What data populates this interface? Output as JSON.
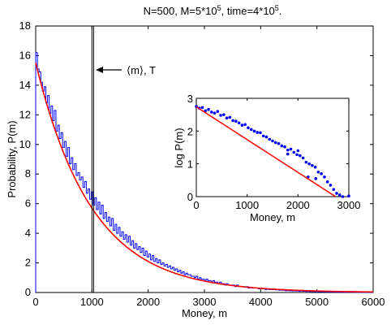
{
  "chart_data": [
    {
      "type": "bar",
      "title_parts": [
        "N=500, M=5*10",
        "5",
        ", time=4*10",
        "5",
        "."
      ],
      "xlabel": "Money, m",
      "ylabel": "Probability, P(m)",
      "xlim": [
        0,
        6000
      ],
      "ylim": [
        0,
        18
      ],
      "xticks": [
        "0",
        "1000",
        "2000",
        "3000",
        "4000",
        "5000",
        "6000"
      ],
      "yticks": [
        "0",
        "2",
        "4",
        "6",
        "8",
        "10",
        "12",
        "14",
        "16",
        "18"
      ],
      "annotation": "⟨m⟩, T",
      "mean_lines_x": [
        1000,
        1030
      ],
      "bin_width": 30,
      "histogram": [
        16.2,
        15.1,
        14.9,
        14.2,
        13.6,
        13.9,
        12.8,
        13.3,
        12.1,
        12.6,
        11.6,
        12.3,
        10.9,
        11.3,
        10.4,
        10.8,
        9.8,
        10.2,
        9.2,
        9.8,
        8.7,
        9.1,
        8.3,
        8.7,
        7.9,
        8.1,
        7.6,
        7.8,
        7.1,
        7.5,
        6.7,
        7.0,
        6.3,
        6.8,
        5.9,
        6.4,
        5.6,
        6.1,
        5.3,
        5.9,
        5.0,
        5.4,
        4.8,
        5.1,
        4.5,
        5.0,
        4.2,
        4.6,
        4.0,
        4.4,
        3.8,
        4.1,
        3.6,
        3.9,
        3.4,
        3.8,
        3.2,
        3.5,
        3.0,
        3.3,
        2.9,
        3.1,
        2.7,
        3.0,
        2.5,
        2.8,
        2.4,
        2.6,
        2.2,
        2.5,
        2.1,
        2.3,
        2.0,
        2.2,
        1.9,
        2.0,
        1.8,
        1.9,
        1.7,
        1.8,
        1.6,
        1.7,
        1.5,
        1.6,
        1.4,
        1.5,
        1.3,
        1.4,
        1.2,
        1.3,
        1.2,
        1.2,
        1.1,
        1.1,
        1.0,
        1.1,
        0.9,
        1.0,
        0.9,
        0.9,
        0.8,
        0.9,
        0.8,
        0.8,
        0.7,
        0.8,
        0.7,
        0.7,
        0.6,
        0.7,
        0.6,
        0.6,
        0.5,
        0.6,
        0.5,
        0.5,
        0.5,
        0.5,
        0.4,
        0.5,
        0.4,
        0.4,
        0.4,
        0.4,
        0.35,
        0.4,
        0.3,
        0.35,
        0.3,
        0.3,
        0.3,
        0.3,
        0.25,
        0.3,
        0.25,
        0.25,
        0.2,
        0.25,
        0.2,
        0.2,
        0.2,
        0.2,
        0.18,
        0.2,
        0.15,
        0.18,
        0.15,
        0.15,
        0.12,
        0.15,
        0.12,
        0.12,
        0.1,
        0.12,
        0.1,
        0.1,
        0.08,
        0.1,
        0.08,
        0.08,
        0.07,
        0.08,
        0.06,
        0.07,
        0.06,
        0.06,
        0.05,
        0.06,
        0.05,
        0.05,
        0.04,
        0.05,
        0.04,
        0.04,
        0.03,
        0.04,
        0.03,
        0.03,
        0.03,
        0.03,
        0.02,
        0.03,
        0.02,
        0.02,
        0.02,
        0.02,
        0.02,
        0.02,
        0.01,
        0.02,
        0.01,
        0.01,
        0.01,
        0.01,
        0.01,
        0.01,
        0.01,
        0.01,
        0.01,
        0.01
      ],
      "fit": {
        "model": "exponential",
        "p0": 15.5,
        "T": 1000
      },
      "colors": {
        "histogram": "#0000ff",
        "fit": "#ff0000",
        "axes": "#000000"
      }
    },
    {
      "type": "scatter",
      "xlabel": "Money, m",
      "ylabel": "log P(m)",
      "xlim": [
        0,
        3000
      ],
      "ylim": [
        0,
        3
      ],
      "xticks": [
        "0",
        "1000",
        "2000",
        "3000"
      ],
      "yticks": [
        "0",
        "1",
        "2",
        "3"
      ],
      "points": [
        [
          0,
          2.75
        ],
        [
          60,
          2.7
        ],
        [
          120,
          2.72
        ],
        [
          180,
          2.62
        ],
        [
          240,
          2.66
        ],
        [
          300,
          2.58
        ],
        [
          360,
          2.55
        ],
        [
          420,
          2.6
        ],
        [
          480,
          2.48
        ],
        [
          540,
          2.5
        ],
        [
          600,
          2.4
        ],
        [
          660,
          2.42
        ],
        [
          720,
          2.32
        ],
        [
          780,
          2.3
        ],
        [
          840,
          2.25
        ],
        [
          900,
          2.18
        ],
        [
          960,
          2.2
        ],
        [
          1020,
          2.1
        ],
        [
          1080,
          2.05
        ],
        [
          1140,
          2.0
        ],
        [
          1200,
          1.96
        ],
        [
          1260,
          1.95
        ],
        [
          1320,
          1.85
        ],
        [
          1380,
          1.82
        ],
        [
          1440,
          1.75
        ],
        [
          1500,
          1.7
        ],
        [
          1560,
          1.65
        ],
        [
          1620,
          1.62
        ],
        [
          1680,
          1.55
        ],
        [
          1740,
          1.52
        ],
        [
          1800,
          1.42
        ],
        [
          1860,
          1.45
        ],
        [
          1920,
          1.35
        ],
        [
          1980,
          1.28
        ],
        [
          2040,
          1.25
        ],
        [
          2100,
          1.18
        ],
        [
          2160,
          1.05
        ],
        [
          2220,
          1.0
        ],
        [
          2280,
          0.95
        ],
        [
          2340,
          0.9
        ],
        [
          2400,
          0.75
        ],
        [
          2460,
          0.7
        ],
        [
          2520,
          0.6
        ],
        [
          2580,
          0.45
        ],
        [
          2640,
          0.35
        ],
        [
          2700,
          0.22
        ],
        [
          2760,
          0.1
        ],
        [
          2820,
          0.05
        ],
        [
          2880,
          0.0
        ],
        [
          3000,
          0.02
        ],
        [
          1800,
          1.3
        ],
        [
          2000,
          1.4
        ],
        [
          2200,
          0.6
        ],
        [
          2350,
          0.55
        ]
      ],
      "fit": {
        "model": "linear",
        "intercept": 2.74,
        "slope": -0.001
      },
      "colors": {
        "points": "#0000ff",
        "fit": "#ff0000"
      }
    }
  ]
}
